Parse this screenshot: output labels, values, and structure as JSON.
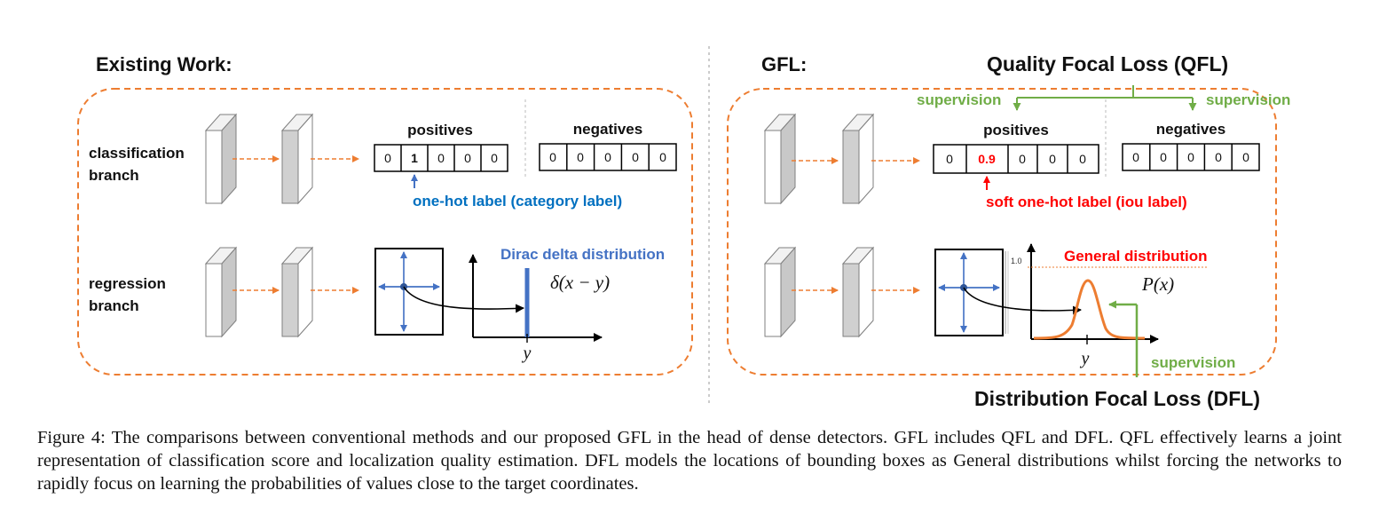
{
  "figure": {
    "left": {
      "title": "Existing Work:",
      "cls_branch": [
        "classification",
        "branch"
      ],
      "reg_branch": [
        "regression",
        "branch"
      ],
      "positives_label": "positives",
      "negatives_label": "negatives",
      "pos_cells": [
        "0",
        "1",
        "0",
        "0",
        "0"
      ],
      "neg_cells": [
        "0",
        "0",
        "0",
        "0",
        "0"
      ],
      "onehot_label": "one-hot label (category label)",
      "dirac_label": "Dirac delta distribution",
      "delta_formula": "δ(x − y)",
      "y_label": "y"
    },
    "right": {
      "title": "GFL:",
      "qfl_title": "Quality Focal Loss (QFL)",
      "dfl_title": "Distribution Focal Loss (DFL)",
      "supervision": "supervision",
      "positives_label": "positives",
      "negatives_label": "negatives",
      "pos_cells": [
        "0",
        "0.9",
        "0",
        "0",
        "0"
      ],
      "neg_cells": [
        "0",
        "0",
        "0",
        "0",
        "0"
      ],
      "soft_label": "soft one-hot label (iou label)",
      "general_label": "General distribution",
      "px_formula": "P(x)",
      "tick_label": "1.0",
      "y_label": "y"
    },
    "colors": {
      "orange": "#ED7D31",
      "green": "#70AD47",
      "blue": "#4472C4",
      "red": "#FF0000",
      "onehot_text": "#0070C0"
    }
  },
  "caption": {
    "text": "Figure 4: The comparisons between conventional methods and our proposed GFL in the head of dense detectors. GFL includes QFL and DFL. QFL effectively learns a joint representation of classification score and localization quality estimation. DFL models the locations of bounding boxes as General distributions whilst forcing the networks to rapidly focus on learning the probabilities of values close to the target coordinates."
  }
}
